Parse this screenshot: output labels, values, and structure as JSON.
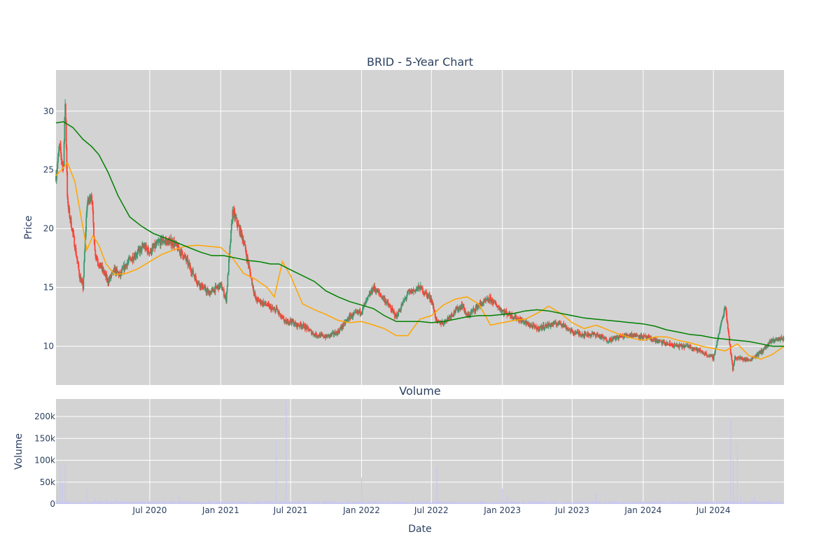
{
  "chart_data": [
    {
      "type": "candlestick",
      "title": "BRID - 5-Year Chart",
      "xlabel": "",
      "ylabel": "Price",
      "ylim": [
        6.7,
        33.5
      ],
      "yticks": [
        10,
        15,
        20,
        25,
        30
      ],
      "xlim": [
        "2019-11-01",
        "2024-12-31"
      ],
      "grid": true,
      "colors": {
        "up": "#3d9970",
        "down": "#ff4136",
        "ma_short": "#ffa500",
        "ma_long": "#008000",
        "plot_bg": "#d3d3d3"
      },
      "series": [
        {
          "type": "ohlc_close_anchors",
          "x": [
            "2019-11-01",
            "2019-11-10",
            "2019-11-20",
            "2019-11-25",
            "2019-12-01",
            "2019-12-10",
            "2019-12-20",
            "2020-01-01",
            "2020-01-10",
            "2020-01-20",
            "2020-02-01",
            "2020-02-10",
            "2020-02-20",
            "2020-03-01",
            "2020-03-15",
            "2020-04-01",
            "2020-04-15",
            "2020-05-01",
            "2020-05-15",
            "2020-06-01",
            "2020-06-15",
            "2020-07-01",
            "2020-07-15",
            "2020-08-01",
            "2020-09-01",
            "2020-10-01",
            "2020-11-01",
            "2020-12-01",
            "2021-01-01",
            "2021-01-15",
            "2021-02-01",
            "2021-03-01",
            "2021-04-01",
            "2021-05-01",
            "2021-05-20",
            "2021-05-25",
            "2021-06-05",
            "2021-06-20",
            "2021-07-01",
            "2021-07-15",
            "2021-08-01",
            "2021-09-01",
            "2021-10-01",
            "2021-11-01",
            "2021-12-01",
            "2022-01-01",
            "2022-02-01",
            "2022-03-01",
            "2022-04-01",
            "2022-05-01",
            "2022-06-01",
            "2022-07-01",
            "2022-07-15",
            "2022-08-01",
            "2022-09-01",
            "2022-09-20",
            "2022-10-01",
            "2022-11-01",
            "2022-12-01",
            "2023-01-01",
            "2023-02-01",
            "2023-03-01",
            "2023-04-01",
            "2023-05-01",
            "2023-06-01",
            "2023-07-01",
            "2023-08-01",
            "2023-09-01",
            "2023-10-01",
            "2023-11-01",
            "2023-12-01",
            "2024-01-01",
            "2024-02-01",
            "2024-03-01",
            "2024-04-01",
            "2024-05-01",
            "2024-06-01",
            "2024-07-01",
            "2024-08-01",
            "2024-08-20",
            "2024-08-25",
            "2024-09-05",
            "2024-10-01",
            "2024-11-01",
            "2024-12-01",
            "2024-12-31"
          ],
          "close": [
            24.5,
            27.0,
            25.0,
            31.0,
            22.0,
            20.5,
            18.5,
            16.0,
            15.0,
            22.0,
            23.0,
            18.0,
            17.0,
            16.5,
            15.5,
            16.5,
            16.0,
            17.0,
            17.5,
            18.0,
            18.5,
            18.0,
            18.5,
            19.0,
            18.8,
            17.5,
            15.5,
            14.5,
            15.2,
            14.0,
            21.5,
            19.0,
            14.0,
            13.5,
            13.0,
            13.2,
            12.5,
            12.0,
            12.2,
            11.8,
            11.8,
            11.0,
            10.8,
            11.2,
            12.5,
            13.0,
            15.0,
            14.0,
            12.5,
            14.5,
            15.0,
            14.0,
            12.0,
            12.0,
            13.0,
            13.5,
            12.5,
            13.5,
            14.0,
            13.0,
            12.5,
            12.0,
            11.5,
            11.8,
            12.0,
            11.2,
            11.0,
            11.0,
            10.5,
            10.8,
            11.0,
            10.8,
            10.5,
            10.2,
            10.0,
            10.0,
            9.5,
            9.0,
            13.5,
            8.0,
            9.0,
            9.0,
            8.8,
            9.5,
            10.5,
            10.7
          ]
        },
        {
          "name": "",
          "type": "moving_average_short",
          "x": [
            "2019-11-01",
            "2019-11-15",
            "2019-12-01",
            "2019-12-20",
            "2020-01-05",
            "2020-01-20",
            "2020-02-05",
            "2020-02-20",
            "2020-03-10",
            "2020-04-01",
            "2020-05-01",
            "2020-06-01",
            "2020-07-01",
            "2020-08-01",
            "2020-09-01",
            "2020-10-01",
            "2020-11-01",
            "2020-12-01",
            "2021-01-01",
            "2021-02-01",
            "2021-03-01",
            "2021-04-01",
            "2021-05-01",
            "2021-05-20",
            "2021-06-10",
            "2021-07-01",
            "2021-08-01",
            "2021-09-01",
            "2021-10-01",
            "2021-11-01",
            "2021-12-01",
            "2022-01-01",
            "2022-02-01",
            "2022-03-01",
            "2022-04-01",
            "2022-05-01",
            "2022-06-01",
            "2022-07-01",
            "2022-08-01",
            "2022-09-01",
            "2022-10-01",
            "2022-11-01",
            "2022-12-01",
            "2023-01-01",
            "2023-02-01",
            "2023-03-01",
            "2023-04-01",
            "2023-05-01",
            "2023-06-01",
            "2023-07-01",
            "2023-08-01",
            "2023-09-01",
            "2023-10-01",
            "2023-11-01",
            "2023-12-01",
            "2024-01-01",
            "2024-02-01",
            "2024-03-01",
            "2024-04-01",
            "2024-05-01",
            "2024-06-01",
            "2024-07-01",
            "2024-08-01",
            "2024-09-01",
            "2024-10-01",
            "2024-11-01",
            "2024-12-01",
            "2024-12-31"
          ],
          "values": [
            24.5,
            25.0,
            25.6,
            24.0,
            21.0,
            18.2,
            19.4,
            18.6,
            17.0,
            16.1,
            16.2,
            16.6,
            17.2,
            17.8,
            18.2,
            18.5,
            18.6,
            18.5,
            18.4,
            17.5,
            16.2,
            15.7,
            15.0,
            14.2,
            17.2,
            16.0,
            13.6,
            13.1,
            12.7,
            12.2,
            12.0,
            12.1,
            11.8,
            11.5,
            10.9,
            10.9,
            12.3,
            12.6,
            13.5,
            14.0,
            14.2,
            13.6,
            11.8,
            12.0,
            12.2,
            12.3,
            12.8,
            13.4,
            12.8,
            12.0,
            11.5,
            11.8,
            11.4,
            11.0,
            10.7,
            10.5,
            10.8,
            10.8,
            10.5,
            10.3,
            10.0,
            9.8,
            9.6,
            10.2,
            9.2,
            8.9,
            9.3,
            10.0
          ]
        },
        {
          "name": "",
          "type": "moving_average_long",
          "x": [
            "2019-11-01",
            "2019-11-20",
            "2019-12-15",
            "2020-01-10",
            "2020-02-01",
            "2020-02-20",
            "2020-03-15",
            "2020-04-10",
            "2020-05-10",
            "2020-06-10",
            "2020-07-10",
            "2020-08-10",
            "2020-09-10",
            "2020-10-10",
            "2020-11-10",
            "2020-12-10",
            "2021-01-10",
            "2021-02-10",
            "2021-03-10",
            "2021-04-10",
            "2021-05-10",
            "2021-06-01",
            "2021-07-01",
            "2021-08-01",
            "2021-09-01",
            "2021-10-01",
            "2021-11-01",
            "2021-12-01",
            "2022-01-01",
            "2022-02-01",
            "2022-03-01",
            "2022-04-01",
            "2022-05-01",
            "2022-06-01",
            "2022-07-01",
            "2022-08-01",
            "2022-09-01",
            "2022-10-01",
            "2022-11-01",
            "2022-12-01",
            "2023-01-01",
            "2023-02-01",
            "2023-03-01",
            "2023-04-01",
            "2023-05-01",
            "2023-06-01",
            "2023-07-01",
            "2023-08-01",
            "2023-09-01",
            "2023-10-01",
            "2023-11-01",
            "2023-12-01",
            "2024-01-01",
            "2024-02-01",
            "2024-03-01",
            "2024-04-01",
            "2024-05-01",
            "2024-06-01",
            "2024-07-01",
            "2024-08-01",
            "2024-09-01",
            "2024-10-01",
            "2024-11-01",
            "2024-12-01",
            "2024-12-31"
          ],
          "values": [
            29.0,
            29.1,
            28.6,
            27.6,
            27.0,
            26.3,
            24.8,
            22.8,
            21.0,
            20.2,
            19.6,
            19.2,
            18.8,
            18.4,
            18.0,
            17.7,
            17.7,
            17.5,
            17.3,
            17.2,
            17.0,
            17.0,
            16.5,
            16.0,
            15.5,
            14.7,
            14.2,
            13.8,
            13.5,
            13.2,
            12.6,
            12.1,
            12.1,
            12.1,
            12.0,
            12.1,
            12.3,
            12.5,
            12.6,
            12.6,
            12.7,
            12.8,
            13.0,
            13.1,
            13.0,
            12.8,
            12.6,
            12.4,
            12.3,
            12.2,
            12.1,
            12.0,
            11.9,
            11.7,
            11.4,
            11.2,
            11.0,
            10.9,
            10.7,
            10.6,
            10.5,
            10.4,
            10.2,
            10.0,
            10.0
          ]
        }
      ]
    },
    {
      "type": "bar",
      "title": "Volume",
      "xlabel": "Date",
      "ylabel": "Volume",
      "ylim": [
        0,
        240000
      ],
      "yticks": [
        0,
        50000,
        100000,
        150000,
        200000
      ],
      "ytick_labels": [
        "0",
        "50k",
        "100k",
        "150k",
        "200k"
      ],
      "xticks": [
        "2020-07-01",
        "2021-01-01",
        "2021-07-01",
        "2022-01-01",
        "2022-07-01",
        "2023-01-01",
        "2023-07-01",
        "2024-01-01",
        "2024-07-01"
      ],
      "xtick_labels": [
        "Jul 2020",
        "Jan 2021",
        "Jul 2021",
        "Jan 2022",
        "Jul 2022",
        "Jan 2023",
        "Jul 2023",
        "Jan 2024",
        "Jul 2024"
      ],
      "grid": true,
      "colors": {
        "bar": "#c8c8f0",
        "plot_bg": "#d3d3d3"
      },
      "series": [
        {
          "name": "",
          "x": [
            "2019-11-05",
            "2019-11-12",
            "2019-11-18",
            "2019-11-25",
            "2020-01-20",
            "2020-02-10",
            "2020-03-10",
            "2020-04-05",
            "2020-09-15",
            "2021-05-25",
            "2021-06-20",
            "2022-01-01",
            "2022-07-15",
            "2023-01-01",
            "2023-01-15",
            "2023-09-01",
            "2024-08-15",
            "2024-08-22",
            "2024-09-01",
            "2024-09-10",
            "2024-10-15"
          ],
          "values": [
            35000,
            90000,
            50000,
            90000,
            35000,
            15000,
            12000,
            12000,
            20000,
            145000,
            235000,
            60000,
            85000,
            35000,
            18000,
            25000,
            195000,
            100000,
            140000,
            20000,
            18000
          ]
        }
      ]
    }
  ]
}
